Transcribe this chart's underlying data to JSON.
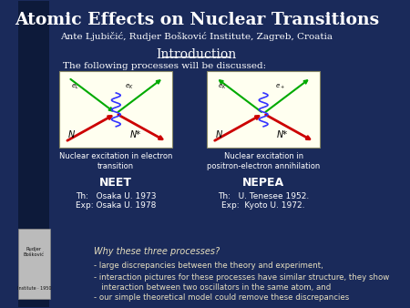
{
  "title": "Atomic Effects on Nuclear Transitions",
  "subtitle": "Ante Ljubičić, Rudjer Bošković Institute, Zagreb, Croatia",
  "section": "Introduction",
  "intro_text": "The following processes will be discussed:",
  "diagram1_caption": "Nuclear excitation in electron\ntransition",
  "diagram1_label": "NEET",
  "diagram1_th": "Th:   Osaka U. 1973",
  "diagram1_exp": "Exp: Osaka U. 1978",
  "diagram2_caption": "Nuclear excitation in\npositron-electron annihilation",
  "diagram2_label": "NEPEA",
  "diagram2_th": "Th:   U. Tenesee 1952.",
  "diagram2_exp": "Exp:  Kyoto U. 1972.",
  "why_title": "Why these three processes?",
  "bullet1": "- large discrepancies between the theory and experiment,",
  "bullet2": "- interaction pictures for these processes have similar structure, they show",
  "bullet2b": "   interaction between two oscillators in the same atom, and",
  "bullet3": "- our simple theoretical model could remove these discrepancies",
  "bg_color": "#1a2a5a",
  "bg_dark": "#0d1a3a",
  "text_color": "#ffffff",
  "title_color": "#ffffff",
  "bottom_text_color": "#e8e0c0",
  "diagram_bg": "#fffff0",
  "red_color": "#cc0000",
  "green_color": "#00aa00",
  "blue_color": "#3333ff",
  "border_width": 0.09
}
